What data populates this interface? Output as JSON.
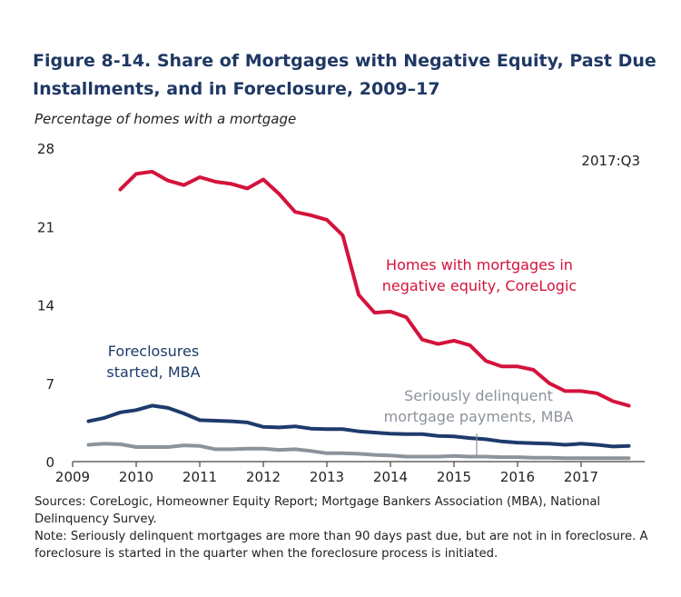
{
  "title": "Figure 8-14. Share of Mortgages with Negative Equity, Past Due Installments, and in Foreclosure, 2009–17",
  "subtitle": "Percentage of homes with a mortgage",
  "sources": "Sources: CoreLogic, Homeowner Equity Report; Mortgage Bankers Association (MBA), National Delinquency Survey.",
  "note": "Note: Seriously delinquent mortgages are more than 90 days past due, but are not in in foreclosure. A foreclosure is started in the quarter when the foreclosure process is initiated.",
  "chart_data": {
    "type": "line",
    "title": "Figure 8-14. Share of Mortgages with Negative Equity, Past Due Installments, and in Foreclosure, 2009–17",
    "ylabel": "Percentage of homes with a mortgage",
    "xlim": [
      2009,
      2018
    ],
    "ylim": [
      0,
      28
    ],
    "yticks": [
      0,
      7,
      14,
      21,
      28
    ],
    "xticks": [
      2009,
      2010,
      2011,
      2012,
      2013,
      2014,
      2015,
      2016,
      2017
    ],
    "grid": false,
    "annotation": "2017:Q3",
    "series": [
      {
        "name": "Homes with mortgages in negative equity, CoreLogic",
        "color": "#d4133c",
        "x": [
          2009.75,
          2010.0,
          2010.25,
          2010.5,
          2010.75,
          2011.0,
          2011.25,
          2011.5,
          2011.75,
          2012.0,
          2012.25,
          2012.5,
          2012.75,
          2013.0,
          2013.25,
          2013.5,
          2013.75,
          2014.0,
          2014.25,
          2014.5,
          2014.75,
          2015.0,
          2015.25,
          2015.5,
          2015.75,
          2016.0,
          2016.25,
          2016.5,
          2016.75,
          2017.0,
          2017.25,
          2017.5,
          2017.75
        ],
        "y": [
          24.3,
          25.7,
          25.9,
          25.1,
          24.7,
          25.4,
          25.0,
          24.8,
          24.4,
          25.2,
          23.9,
          22.3,
          22.0,
          21.6,
          20.2,
          14.9,
          13.3,
          13.4,
          12.9,
          10.9,
          10.5,
          10.8,
          10.4,
          9.0,
          8.5,
          8.5,
          8.2,
          7.0,
          6.3,
          6.3,
          6.1,
          5.4,
          5.0
        ]
      },
      {
        "name": "Foreclosures started, MBA",
        "color": "#1d3b6b",
        "x": [
          2009.25,
          2009.5,
          2009.75,
          2010.0,
          2010.25,
          2010.5,
          2010.75,
          2011.0,
          2011.25,
          2011.5,
          2011.75,
          2012.0,
          2012.25,
          2012.5,
          2012.75,
          2013.0,
          2013.25,
          2013.5,
          2013.75,
          2014.0,
          2014.25,
          2014.5,
          2014.75,
          2015.0,
          2015.25,
          2015.5,
          2015.75,
          2016.0,
          2016.25,
          2016.5,
          2016.75,
          2017.0,
          2017.25,
          2017.5,
          2017.75
        ],
        "y": [
          3.6,
          3.9,
          4.4,
          4.6,
          5.0,
          4.8,
          4.3,
          3.7,
          3.65,
          3.6,
          3.5,
          3.1,
          3.05,
          3.15,
          2.95,
          2.9,
          2.9,
          2.7,
          2.6,
          2.5,
          2.45,
          2.45,
          2.3,
          2.25,
          2.1,
          2.0,
          1.8,
          1.7,
          1.65,
          1.6,
          1.5,
          1.6,
          1.5,
          1.35,
          1.4
        ]
      },
      {
        "name": "Seriously delinquent mortgage payments, MBA",
        "color": "#8c939a",
        "x": [
          2009.25,
          2009.5,
          2009.75,
          2010.0,
          2010.25,
          2010.5,
          2010.75,
          2011.0,
          2011.25,
          2011.5,
          2011.75,
          2012.0,
          2012.25,
          2012.5,
          2012.75,
          2013.0,
          2013.25,
          2013.5,
          2013.75,
          2014.0,
          2014.25,
          2014.5,
          2014.75,
          2015.0,
          2015.25,
          2015.5,
          2015.75,
          2016.0,
          2016.25,
          2016.5,
          2016.75,
          2017.0,
          2017.25,
          2017.5,
          2017.75
        ],
        "y": [
          1.5,
          1.6,
          1.55,
          1.3,
          1.3,
          1.3,
          1.45,
          1.4,
          1.1,
          1.1,
          1.15,
          1.15,
          1.05,
          1.1,
          0.95,
          0.75,
          0.75,
          0.7,
          0.6,
          0.55,
          0.45,
          0.45,
          0.45,
          0.5,
          0.45,
          0.45,
          0.4,
          0.4,
          0.35,
          0.35,
          0.3,
          0.3,
          0.3,
          0.3,
          0.3
        ]
      }
    ],
    "labels": {
      "negative_equity": [
        "Homes with mortgages in",
        "negative equity, CoreLogic"
      ],
      "foreclosures": [
        "Foreclosures",
        "started, MBA"
      ],
      "delinquent": [
        "Seriously delinquent",
        "mortgage payments, MBA"
      ]
    }
  }
}
